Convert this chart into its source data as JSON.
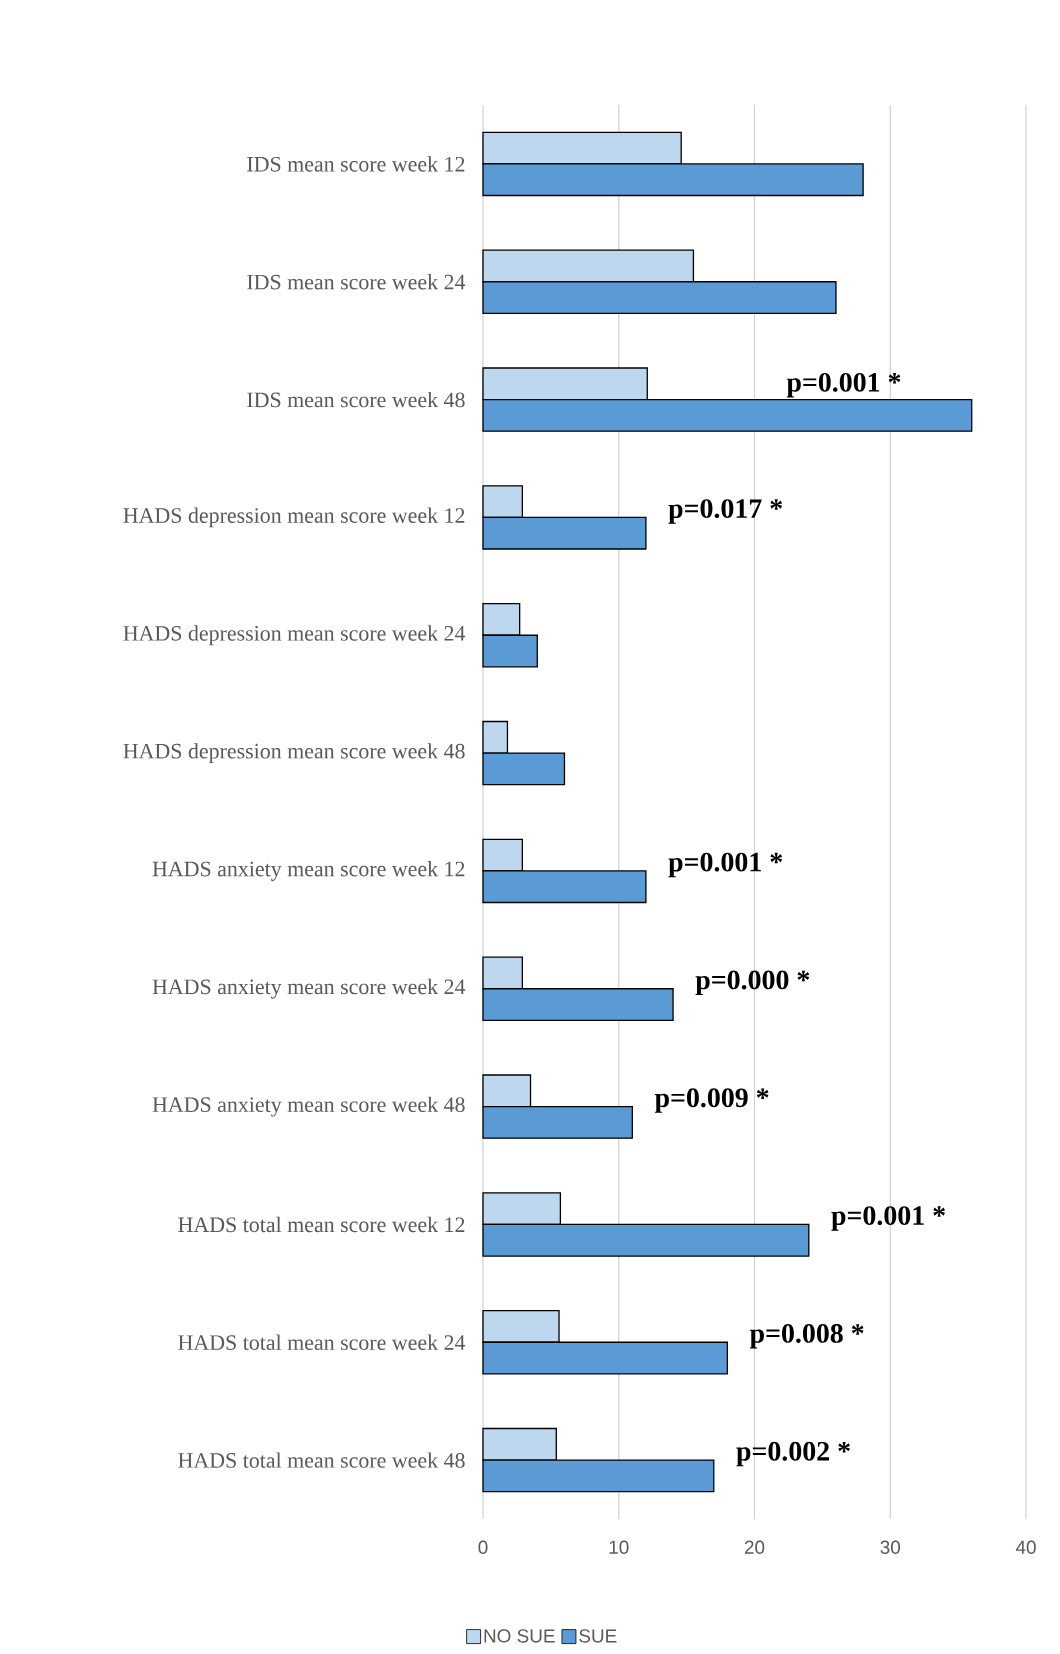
{
  "chart_data": {
    "type": "bar",
    "orientation": "horizontal",
    "categories": [
      "IDS mean score week 12",
      "IDS mean score week 24",
      "IDS mean score week 48",
      "HADS depression mean score week 12",
      "HADS depression mean score week 24",
      "HADS depression mean score week 48",
      "HADS anxiety mean score week 12",
      "HADS anxiety mean score week 24",
      "HADS anxiety mean score week 48",
      "HADS total mean score week 12",
      "HADS total mean score week 24",
      "HADS total mean score week 48"
    ],
    "series": [
      {
        "name": "NO SUE",
        "color": "#bdd7ee",
        "values": [
          14.6,
          15.5,
          12.1,
          2.9,
          2.7,
          1.8,
          2.9,
          2.9,
          3.5,
          5.7,
          5.6,
          5.4
        ]
      },
      {
        "name": "SUE",
        "color": "#5b9bd5",
        "values": [
          28.0,
          26.0,
          36.0,
          12.0,
          4.0,
          6.0,
          12.0,
          14.0,
          11.0,
          24.0,
          18.0,
          17.0
        ]
      }
    ],
    "xlim": [
      0,
      40
    ],
    "xticks": [
      0,
      10,
      20,
      30,
      40
    ],
    "grid": "x",
    "legend": "bottom",
    "annotations": [
      {
        "text": "p=0.001 *",
        "x": 36.0,
        "y": "IDS mean score week 48"
      },
      {
        "text": "p=0.017 *",
        "x": 12.0,
        "y": "HADS depression mean score week 12"
      },
      {
        "text": "p=0.001 *",
        "x": 12.0,
        "y": "HADS anxiety mean score week 12"
      },
      {
        "text": "p=0.000 *",
        "x": 14.0,
        "y": "HADS anxiety mean score week 24"
      },
      {
        "text": "p=0.009 *",
        "x": 11.0,
        "y": "HADS anxiety mean score week 48"
      },
      {
        "text": "p=0.001 *",
        "x": 24.0,
        "y": "HADS total mean score week 12"
      },
      {
        "text": "p=0.008 *",
        "x": 18.0,
        "y": "HADS total mean score week 24"
      },
      {
        "text": "p=0.002 *",
        "x": 17.0,
        "y": "HADS total mean score week 48"
      }
    ]
  }
}
